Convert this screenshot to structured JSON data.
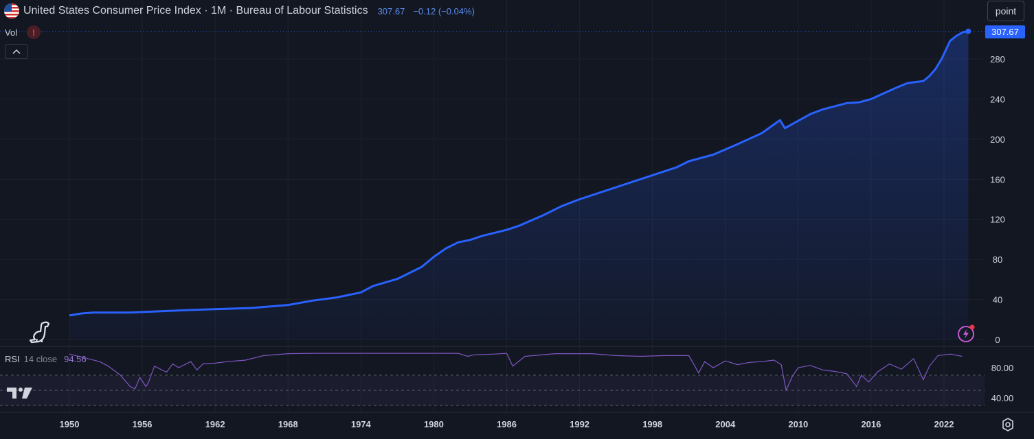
{
  "header": {
    "title": "United States Consumer Price Index · 1M · Bureau of Labour Statistics",
    "last_value": "307.67",
    "change": "−0.12 (−0.04%)",
    "flag_icon": "us-flag-icon"
  },
  "volume": {
    "label": "Vol",
    "warning_icon": "warning-icon",
    "warning_glyph": "!"
  },
  "collapse_icon": "chevron-up-icon",
  "scale_button": {
    "label": "point"
  },
  "price_tag": "307.67",
  "rsi": {
    "name": "RSI",
    "params": "14 close",
    "value": "94.56",
    "axis_ticks": [
      "80.00",
      "40.00"
    ],
    "color": "#7e57c2"
  },
  "colors": {
    "background": "#131722",
    "line": "#2962ff",
    "rsi": "#7e57c2",
    "grid": "#1e222d",
    "text": "#d1d4dc"
  },
  "chart_data": [
    {
      "type": "area",
      "title": "United States Consumer Price Index",
      "y_tick_labels": [
        "0",
        "40",
        "80",
        "120",
        "160",
        "200",
        "240",
        "280"
      ],
      "x_tick_labels": [
        "1950",
        "1956",
        "1962",
        "1968",
        "1974",
        "1980",
        "1986",
        "1992",
        "1998",
        "2004",
        "2010",
        "2016",
        "2022"
      ],
      "ylim": [
        0,
        307.67
      ],
      "xlim": [
        1946.8,
        2024.0
      ],
      "grid": true,
      "series": [
        {
          "x": [
            1950.0,
            1951.0,
            1952.0,
            1955.0,
            1960.0,
            1965.0,
            1968.0,
            1970.0,
            1972.0,
            1974.0,
            1975.0,
            1977.0,
            1979.0,
            1980.0,
            1981.0,
            1982.0,
            1983.0,
            1984.0,
            1986.0,
            1987.0,
            1989.0,
            1990.5,
            1992.0,
            1995.0,
            1997.0,
            2000.0,
            2001.0,
            2003.0,
            2005.0,
            2007.0,
            2008.5,
            2008.9,
            2009.5,
            2011.0,
            2012.0,
            2014.0,
            2015.0,
            2016.0,
            2018.0,
            2019.0,
            2020.3,
            2020.8,
            2021.3,
            2021.8,
            2022.5,
            2023.0,
            2023.6,
            2024.0
          ],
          "y": [
            24,
            26,
            27,
            27,
            29.5,
            31.5,
            34.5,
            38.8,
            42,
            47,
            53.5,
            60.5,
            72.5,
            82.5,
            91,
            97,
            99.5,
            103.5,
            109.5,
            113.5,
            124,
            133,
            140,
            152,
            160,
            172,
            178,
            184.5,
            195,
            206,
            219,
            211,
            215,
            225,
            229.6,
            236,
            236.7,
            240,
            251,
            256,
            258,
            263,
            270,
            280,
            298,
            303,
            307,
            307.67
          ]
        }
      ]
    },
    {
      "type": "line",
      "title": "RSI",
      "y_tick_labels": [
        "80.00",
        "40.00"
      ],
      "ylim": [
        24,
        103
      ],
      "levels": [
        70,
        50,
        30
      ],
      "series": [
        {
          "name": "RSI 14 close",
          "x": [
            1950.0,
            1951.5,
            1952.5,
            1953.2,
            1954.2,
            1955.0,
            1955.4,
            1955.8,
            1956.3,
            1956.5,
            1957.0,
            1958.0,
            1958.5,
            1959.0,
            1960.0,
            1960.5,
            1961.0,
            1962.0,
            1963.0,
            1964.5,
            1966.0,
            1968.0,
            1970.0,
            1974.0,
            1978.0,
            1982.0,
            1982.8,
            1983.3,
            1985.0,
            1986.0,
            1986.5,
            1987.5,
            1990.0,
            1993.0,
            1995.0,
            1997.0,
            1999.0,
            2001.0,
            2001.8,
            2002.3,
            2003.0,
            2004.0,
            2005.0,
            2006.0,
            2007.0,
            2008.0,
            2008.6,
            2009.0,
            2009.5,
            2010.0,
            2011.0,
            2012.0,
            2013.0,
            2014.0,
            2014.8,
            2015.2,
            2015.8,
            2016.5,
            2017.5,
            2018.5,
            2019.5,
            2020.3,
            2020.8,
            2021.5,
            2022.5,
            2023.5
          ],
          "y": [
            98,
            92,
            88,
            82,
            70,
            55,
            52,
            67,
            55,
            60,
            82,
            74,
            85,
            80,
            88,
            77,
            85,
            86,
            88,
            90,
            96,
            98.5,
            99,
            99,
            99,
            99,
            95,
            97,
            98,
            99,
            82,
            95,
            98.5,
            98.5,
            96,
            95,
            96,
            96,
            73,
            88,
            80,
            89,
            84,
            87,
            88,
            90,
            84,
            50,
            68,
            80,
            83,
            77,
            75,
            72,
            55,
            70,
            61,
            74,
            85,
            78,
            92,
            64,
            82,
            96,
            98,
            95
          ]
        }
      ]
    }
  ]
}
